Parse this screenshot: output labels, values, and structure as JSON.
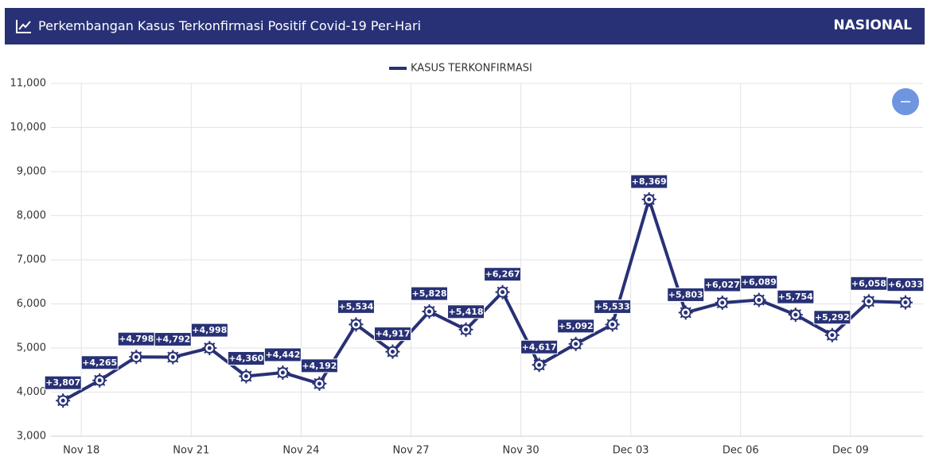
{
  "header": {
    "title": "Perkembangan Kasus Terkonfirmasi Positif Covid-19 Per-Hari",
    "region": "NASIONAL"
  },
  "chart_data": {
    "type": "line",
    "categories": [
      null,
      null,
      null,
      null,
      null,
      null,
      null,
      null,
      null,
      null,
      null,
      null,
      null,
      null,
      null,
      null,
      null,
      null,
      null,
      null,
      null,
      null,
      null,
      null
    ],
    "series": [
      {
        "name": "KASUS TERKONFIRMASI",
        "color": "#283175",
        "values": [
          3807,
          4265,
          4798,
          4792,
          4998,
          4360,
          4442,
          4192,
          5534,
          4917,
          5828,
          5418,
          6267,
          4617,
          5092,
          5533,
          8369,
          5803,
          6027,
          6089,
          5754,
          5292,
          6058,
          6033
        ],
        "value_labels": [
          "+3,807",
          "+4,265",
          "+4,798",
          "+4,792",
          "+4,998",
          "+4,360",
          "+4,442",
          "+4,192",
          "+5,534",
          "+4,917",
          "+5,828",
          "+5,418",
          "+6,267",
          "+4,617",
          "+5,092",
          "+5,533",
          "+8,369",
          "+5,803",
          "+6,027",
          "+6,089",
          "+5,754",
          "+5,292",
          "+6,058",
          "+6,033"
        ]
      }
    ],
    "xlim": [
      -0.33,
      23.48
    ],
    "xticks": [
      {
        "value": 0.5,
        "label": "Nov 18"
      },
      {
        "value": 3.5,
        "label": "Nov 21"
      },
      {
        "value": 6.5,
        "label": "Nov 24"
      },
      {
        "value": 9.5,
        "label": "Nov 27"
      },
      {
        "value": 12.5,
        "label": "Nov 30"
      },
      {
        "value": 15.5,
        "label": "Dec 03"
      },
      {
        "value": 18.5,
        "label": "Dec 06"
      },
      {
        "value": 21.5,
        "label": "Dec 09"
      }
    ],
    "ylim": [
      3000,
      11000
    ],
    "yticks": [
      {
        "value": 3000,
        "label": "3,000"
      },
      {
        "value": 4000,
        "label": "4,000"
      },
      {
        "value": 5000,
        "label": "5,000"
      },
      {
        "value": 6000,
        "label": "6,000"
      },
      {
        "value": 7000,
        "label": "7,000"
      },
      {
        "value": 8000,
        "label": "8,000"
      },
      {
        "value": 9000,
        "label": "9,000"
      },
      {
        "value": 10000,
        "label": "10,000"
      },
      {
        "value": 11000,
        "label": "11,000"
      }
    ],
    "grid": true
  }
}
